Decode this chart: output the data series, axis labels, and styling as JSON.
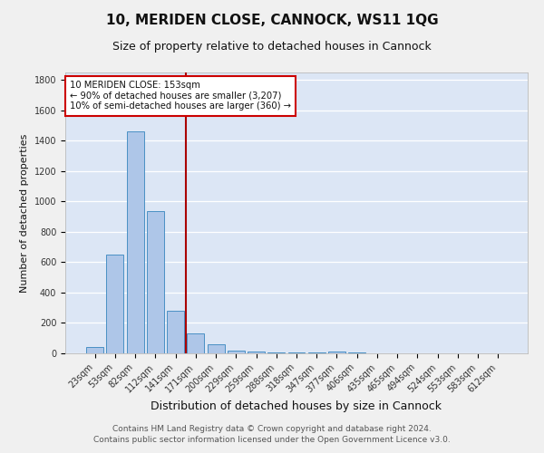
{
  "title": "10, MERIDEN CLOSE, CANNOCK, WS11 1QG",
  "subtitle": "Size of property relative to detached houses in Cannock",
  "xlabel": "Distribution of detached houses by size in Cannock",
  "ylabel": "Number of detached properties",
  "bar_labels": [
    "23sqm",
    "53sqm",
    "82sqm",
    "112sqm",
    "141sqm",
    "171sqm",
    "200sqm",
    "229sqm",
    "259sqm",
    "288sqm",
    "318sqm",
    "347sqm",
    "377sqm",
    "406sqm",
    "435sqm",
    "465sqm",
    "494sqm",
    "524sqm",
    "553sqm",
    "583sqm",
    "612sqm"
  ],
  "bar_values": [
    40,
    650,
    1460,
    935,
    280,
    130,
    60,
    20,
    10,
    5,
    5,
    5,
    12,
    5,
    0,
    0,
    0,
    0,
    0,
    0,
    0
  ],
  "bar_color": "#aec6e8",
  "bar_edge_color": "#4a90c4",
  "vline_x": 4.5,
  "vline_color": "#aa0000",
  "annotation_text": "10 MERIDEN CLOSE: 153sqm\n← 90% of detached houses are smaller (3,207)\n10% of semi-detached houses are larger (360) →",
  "annotation_box_color": "#ffffff",
  "annotation_box_edge": "#cc0000",
  "ylim": [
    0,
    1850
  ],
  "yticks": [
    0,
    200,
    400,
    600,
    800,
    1000,
    1200,
    1400,
    1600,
    1800
  ],
  "bg_color": "#dce6f5",
  "grid_color": "#ffffff",
  "footer1": "Contains HM Land Registry data © Crown copyright and database right 2024.",
  "footer2": "Contains public sector information licensed under the Open Government Licence v3.0.",
  "title_fontsize": 11,
  "subtitle_fontsize": 9,
  "xlabel_fontsize": 9,
  "ylabel_fontsize": 8,
  "tick_fontsize": 7,
  "footer_fontsize": 6.5
}
